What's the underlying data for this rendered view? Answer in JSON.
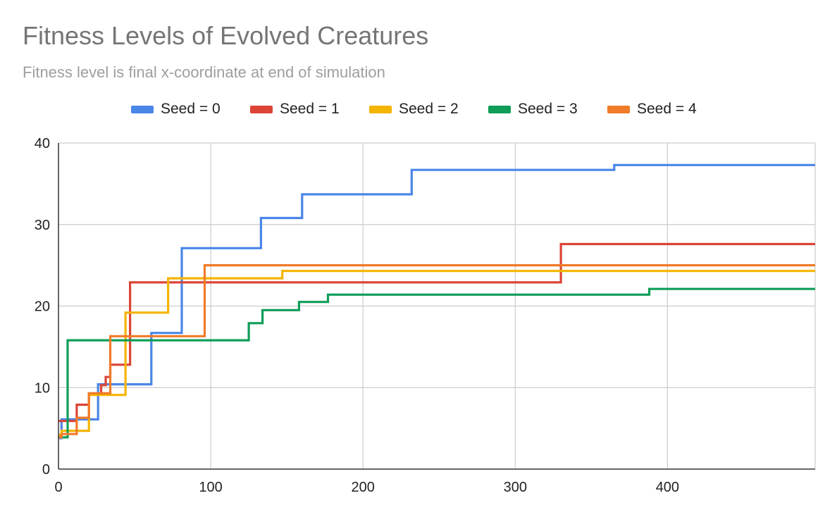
{
  "chart_data": {
    "type": "line",
    "title": "Fitness Levels of Evolved Creatures",
    "subtitle": "Fitness level is final x-coordinate at end of simulation",
    "xlabel": "",
    "ylabel": "",
    "xlim": [
      0,
      497
    ],
    "ylim": [
      0,
      40
    ],
    "x_ticks": [
      0,
      100,
      200,
      300,
      400
    ],
    "y_ticks": [
      0,
      10,
      20,
      30,
      40
    ],
    "grid": true,
    "legend_position": "top",
    "step": true,
    "series": [
      {
        "name": "Seed = 0",
        "color": "#4a86e8",
        "points": [
          [
            0,
            3.8
          ],
          [
            2,
            6.1
          ],
          [
            24,
            6.1
          ],
          [
            26,
            10.4
          ],
          [
            60,
            10.4
          ],
          [
            61,
            16.7
          ],
          [
            80,
            16.7
          ],
          [
            81,
            27.1
          ],
          [
            132,
            27.1
          ],
          [
            133,
            30.8
          ],
          [
            159,
            30.8
          ],
          [
            160,
            33.7
          ],
          [
            231,
            33.7
          ],
          [
            232,
            36.7
          ],
          [
            364,
            36.7
          ],
          [
            365,
            37.3
          ],
          [
            497,
            37.3
          ]
        ]
      },
      {
        "name": "Seed = 1",
        "color": "#db4437",
        "points": [
          [
            0,
            5.9
          ],
          [
            11,
            5.9
          ],
          [
            12,
            7.9
          ],
          [
            19,
            7.9
          ],
          [
            20,
            9.2
          ],
          [
            27,
            9.2
          ],
          [
            28,
            10.3
          ],
          [
            30,
            10.3
          ],
          [
            31,
            11.3
          ],
          [
            33,
            11.3
          ],
          [
            34,
            12.8
          ],
          [
            46,
            12.8
          ],
          [
            47,
            22.9
          ],
          [
            329,
            22.9
          ],
          [
            330,
            27.6
          ],
          [
            497,
            27.6
          ]
        ]
      },
      {
        "name": "Seed = 2",
        "color": "#f4b400",
        "points": [
          [
            0,
            4.2
          ],
          [
            2,
            4.7
          ],
          [
            19,
            4.7
          ],
          [
            20,
            9.1
          ],
          [
            43,
            9.1
          ],
          [
            44,
            19.2
          ],
          [
            71,
            19.2
          ],
          [
            72,
            23.4
          ],
          [
            146,
            23.4
          ],
          [
            147,
            24.3
          ],
          [
            497,
            24.3
          ]
        ]
      },
      {
        "name": "Seed = 3",
        "color": "#0f9d58",
        "points": [
          [
            0,
            3.9
          ],
          [
            5,
            3.9
          ],
          [
            6,
            15.8
          ],
          [
            124,
            15.8
          ],
          [
            125,
            17.9
          ],
          [
            133,
            17.9
          ],
          [
            134,
            19.5
          ],
          [
            157,
            19.5
          ],
          [
            158,
            20.5
          ],
          [
            176,
            20.5
          ],
          [
            177,
            21.4
          ],
          [
            387,
            21.4
          ],
          [
            388,
            22.1
          ],
          [
            497,
            22.1
          ]
        ]
      },
      {
        "name": "Seed = 4",
        "color": "#f07b29",
        "points": [
          [
            0,
            3.9
          ],
          [
            2,
            4.3
          ],
          [
            11,
            4.3
          ],
          [
            12,
            6.3
          ],
          [
            19,
            6.3
          ],
          [
            20,
            9.3
          ],
          [
            33,
            9.3
          ],
          [
            34,
            16.3
          ],
          [
            95,
            16.3
          ],
          [
            96,
            25.0
          ],
          [
            497,
            25.0
          ]
        ]
      }
    ]
  }
}
